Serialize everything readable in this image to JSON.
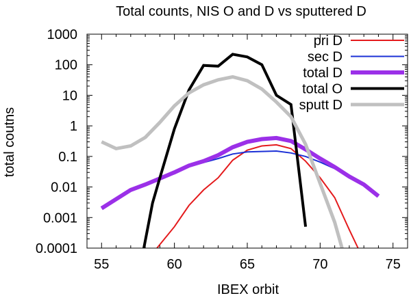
{
  "chart_data": {
    "type": "line",
    "title": "Total counts, NIS O and D vs sputtered D",
    "xlabel": "IBEX orbit",
    "ylabel": "total coutns",
    "xlim": [
      54,
      76
    ],
    "ylim": [
      0.0001,
      1000
    ],
    "yscale": "log",
    "xticks": [
      55,
      60,
      65,
      70,
      75
    ],
    "yticks": [
      0.0001,
      0.001,
      0.01,
      0.1,
      1,
      10,
      100,
      1000
    ],
    "ytick_labels": [
      "0.0001",
      "0.001",
      "0.01",
      "0.1",
      "1",
      "10",
      "100",
      "1000"
    ],
    "legend_position": "top-right",
    "series": [
      {
        "name": "pri D",
        "color": "#e41a1c",
        "width": 2,
        "x": [
          58.8,
          60,
          61,
          62,
          63,
          64,
          65,
          66,
          67,
          68,
          69,
          70,
          71,
          72,
          72.6
        ],
        "y": [
          0.0001,
          0.0005,
          0.0025,
          0.008,
          0.02,
          0.075,
          0.16,
          0.22,
          0.24,
          0.18,
          0.07,
          0.02,
          0.0045,
          0.0004,
          0.0001
        ]
      },
      {
        "name": "sec D",
        "color": "#1a2fd6",
        "width": 2,
        "x": [
          55,
          56,
          57,
          58,
          59,
          60,
          61,
          62,
          63,
          64,
          65,
          66,
          67,
          68,
          69,
          70,
          71,
          72,
          73,
          74
        ],
        "y": [
          0.002,
          0.004,
          0.008,
          0.012,
          0.019,
          0.03,
          0.048,
          0.063,
          0.085,
          0.12,
          0.14,
          0.145,
          0.15,
          0.13,
          0.1,
          0.065,
          0.04,
          0.022,
          0.012,
          0.005
        ]
      },
      {
        "name": "total D",
        "color": "#9b30e8",
        "width": 6,
        "x": [
          55,
          56,
          57,
          58,
          59,
          60,
          61,
          62,
          63,
          64,
          65,
          66,
          67,
          68,
          69,
          70,
          71,
          72,
          73,
          74
        ],
        "y": [
          0.002,
          0.004,
          0.008,
          0.012,
          0.019,
          0.03,
          0.05,
          0.07,
          0.11,
          0.2,
          0.3,
          0.37,
          0.4,
          0.32,
          0.17,
          0.085,
          0.045,
          0.022,
          0.012,
          0.005
        ]
      },
      {
        "name": "total O",
        "color": "#000000",
        "width": 4,
        "x": [
          57.9,
          58.5,
          59,
          60,
          61,
          62,
          63,
          64,
          65,
          66,
          67,
          68,
          69
        ],
        "y": [
          0.0001,
          0.003,
          0.02,
          0.8,
          15,
          95,
          90,
          220,
          180,
          100,
          10,
          5,
          0.0005
        ]
      },
      {
        "name": "sputt D",
        "color": "#c0c0c0",
        "width": 5,
        "x": [
          55,
          56,
          57,
          58,
          59,
          60,
          61,
          62,
          63,
          64,
          65,
          66,
          67,
          68,
          69,
          70,
          71,
          71.5
        ],
        "y": [
          0.3,
          0.18,
          0.22,
          0.42,
          1.3,
          4.5,
          12,
          22,
          32,
          40,
          30,
          16,
          6,
          2,
          0.25,
          0.013,
          0.0007,
          0.0001
        ]
      }
    ]
  }
}
